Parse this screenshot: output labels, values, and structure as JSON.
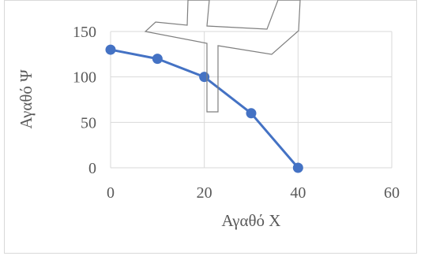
{
  "chart_data": {
    "type": "line",
    "xlabel": "Αγαθό X",
    "ylabel": "Αγαθό Ψ",
    "x": [
      0,
      10,
      20,
      30,
      40
    ],
    "series": [
      {
        "values": [
          130,
          120,
          100,
          60,
          0
        ]
      }
    ],
    "xlim": [
      0,
      60
    ],
    "ylim": [
      0,
      150
    ],
    "xticks": [
      0,
      20,
      40,
      60
    ],
    "yticks": [
      0,
      50,
      100,
      150
    ],
    "x_tick_labels": [
      "0",
      "20",
      "40",
      "60"
    ],
    "y_tick_labels": [
      "0",
      "50",
      "100",
      "150"
    ],
    "grid": true,
    "legend": "none",
    "colors": {
      "series": "#4472c4",
      "grid": "#d9d9d9",
      "text": "#595959",
      "overlay_stroke": "#7f7f7f"
    }
  },
  "overlay": {
    "icon": "close-icon"
  }
}
